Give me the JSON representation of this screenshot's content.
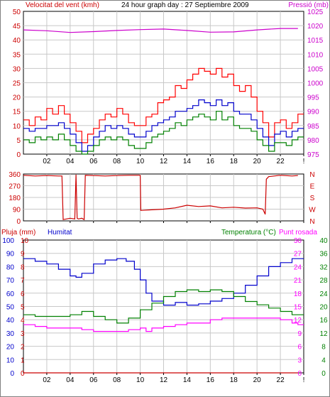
{
  "title": "24 hour graph day : 27 Septiembre 2009",
  "x_ticks": [
    "02",
    "04",
    "06",
    "08",
    "10",
    "12",
    "14",
    "16",
    "18",
    "20",
    "22",
    "!"
  ],
  "colors": {
    "wind": "#ff0000",
    "gust": "#0000cc",
    "rain": "#cc0000",
    "humidity": "#0000cc",
    "temperature": "#008000",
    "dewpoint": "#ff00ff",
    "pressure": "#cc00cc",
    "direction": "#cc0000",
    "grid": "#c8c8c8"
  },
  "chart_data": [
    {
      "type": "line",
      "name": "wind-pressure",
      "left_label": "Velocitat del vent (kmh)",
      "right_label": "Pressió (mb)",
      "left_ticks": [
        0,
        5,
        10,
        15,
        20,
        25,
        30,
        35,
        40,
        45,
        50
      ],
      "ylim_left": [
        0,
        50
      ],
      "right_ticks": [
        975,
        980,
        985,
        990,
        995,
        1000,
        1005,
        1010,
        1015,
        1020,
        1025
      ],
      "ylim_right": [
        975,
        1025
      ],
      "xlim": [
        0,
        24
      ],
      "series": [
        {
          "key": "wind_gust",
          "axis": "left",
          "color": "#ff0000",
          "x": [
            0,
            0.5,
            1,
            1.5,
            2,
            2.5,
            3,
            3.5,
            4,
            4.5,
            5,
            5.5,
            6,
            6.5,
            7,
            7.5,
            8,
            8.5,
            9,
            9.5,
            10,
            10.5,
            11,
            11.5,
            12,
            12.5,
            13,
            13.5,
            14,
            14.5,
            15,
            15.5,
            16,
            16.5,
            17,
            17.5,
            18,
            18.5,
            19,
            19.5,
            20,
            20.5,
            21,
            21.5,
            22,
            22.5,
            23,
            23.5
          ],
          "y": [
            12,
            10,
            13,
            12,
            16,
            14,
            17,
            14,
            11,
            8,
            4,
            7,
            9,
            12,
            14,
            13,
            16,
            14,
            11,
            10,
            10,
            13,
            14,
            18,
            19,
            20,
            24,
            23,
            26,
            28,
            30,
            29,
            28,
            30,
            27,
            28,
            24,
            22,
            24,
            20,
            15,
            11,
            6,
            11,
            12,
            9,
            11,
            14
          ]
        },
        {
          "key": "wind_avg",
          "axis": "left",
          "color": "#0000cc",
          "x": [
            0,
            0.5,
            1,
            1.5,
            2,
            2.5,
            3,
            3.5,
            4,
            4.5,
            5,
            5.5,
            6,
            6.5,
            7,
            7.5,
            8,
            8.5,
            9,
            9.5,
            10,
            10.5,
            11,
            11.5,
            12,
            12.5,
            13,
            13.5,
            14,
            14.5,
            15,
            15.5,
            16,
            16.5,
            17,
            17.5,
            18,
            18.5,
            19,
            19.5,
            20,
            20.5,
            21,
            21.5,
            22,
            22.5,
            23,
            23.5
          ],
          "y": [
            9,
            8,
            9,
            9,
            10,
            10,
            11,
            9,
            7,
            4,
            1,
            3,
            6,
            8,
            10,
            9,
            10,
            9,
            7,
            6,
            6,
            8,
            10,
            11,
            12,
            13,
            15,
            15,
            16,
            17,
            19,
            18,
            17,
            19,
            17,
            18,
            15,
            14,
            14,
            12,
            9,
            6,
            3,
            7,
            8,
            6,
            8,
            9
          ]
        },
        {
          "key": "wind_low",
          "axis": "left",
          "color": "#008000",
          "x": [
            0,
            0.5,
            1,
            1.5,
            2,
            2.5,
            3,
            3.5,
            4,
            4.5,
            5,
            5.5,
            6,
            6.5,
            7,
            7.5,
            8,
            8.5,
            9,
            9.5,
            10,
            10.5,
            11,
            11.5,
            12,
            12.5,
            13,
            13.5,
            14,
            14.5,
            15,
            15.5,
            16,
            16.5,
            17,
            17.5,
            18,
            18.5,
            19,
            19.5,
            20,
            20.5,
            21,
            21.5,
            22,
            22.5,
            23,
            23.5
          ],
          "y": [
            5,
            4,
            6,
            5,
            6,
            5,
            7,
            5,
            3,
            1,
            0,
            1,
            3,
            5,
            6,
            5,
            6,
            5,
            3,
            2,
            2,
            4,
            6,
            7,
            8,
            9,
            11,
            10,
            12,
            13,
            14,
            13,
            12,
            15,
            12,
            13,
            10,
            9,
            9,
            8,
            5,
            3,
            1,
            4,
            4,
            3,
            5,
            6
          ]
        },
        {
          "key": "pressure",
          "axis": "right",
          "color": "#cc00cc",
          "x": [
            0,
            2,
            4,
            6,
            8,
            10,
            12,
            14,
            16,
            18,
            20,
            22,
            23.5
          ],
          "y": [
            1018.5,
            1018.2,
            1017.6,
            1017.9,
            1018.3,
            1018.6,
            1018.8,
            1018.3,
            1017.7,
            1017.8,
            1018.5,
            1019.0,
            1019.0
          ]
        }
      ]
    },
    {
      "type": "line",
      "name": "wind-direction",
      "left_ticks": [
        0,
        90,
        180,
        270,
        360
      ],
      "ylim_left": [
        0,
        360
      ],
      "right_ticks": [
        "N",
        "E",
        "S",
        "W",
        "N"
      ],
      "xlim": [
        0,
        24
      ],
      "series": [
        {
          "key": "direction",
          "axis": "left",
          "color": "#cc0000",
          "x": [
            0,
            1,
            2,
            3,
            3.3,
            3.4,
            4,
            4.4,
            4.5,
            4.6,
            4.7,
            5,
            5.2,
            5.3,
            6,
            7,
            8,
            9,
            10,
            10.05,
            11,
            12,
            13,
            14,
            15,
            16,
            17,
            18,
            19,
            20,
            20.5,
            20.7,
            20.8,
            21,
            22,
            23,
            23.5
          ],
          "y": [
            350,
            345,
            348,
            345,
            345,
            10,
            20,
            15,
            355,
            20,
            15,
            20,
            10,
            350,
            348,
            345,
            348,
            350,
            350,
            80,
            85,
            90,
            100,
            120,
            110,
            115,
            100,
            105,
            98,
            100,
            90,
            50,
            320,
            340,
            350,
            345,
            348
          ]
        }
      ]
    },
    {
      "type": "line",
      "name": "rain-humidity-temperature",
      "left_labels": [
        "Pluja (mm)",
        "Humitat"
      ],
      "right_labels": [
        "Temperatura (°C)",
        "Punt rosada"
      ],
      "rain_ticks": [
        0,
        1,
        2,
        3,
        4,
        5,
        6,
        7,
        8,
        9,
        10
      ],
      "humidity_ticks": [
        0,
        10,
        20,
        30,
        40,
        50,
        60,
        70,
        80,
        90,
        100
      ],
      "temp_ticks_inner": [
        0,
        3,
        6,
        9,
        12,
        15,
        18,
        21,
        24,
        27,
        30
      ],
      "temp_ticks_right": [
        0,
        4,
        8,
        12,
        16,
        20,
        24,
        28,
        32,
        36,
        40
      ],
      "ylim_humidity": [
        0,
        100
      ],
      "ylim_temp": [
        0,
        40
      ],
      "xlim": [
        0,
        24
      ],
      "series": [
        {
          "key": "humidity",
          "axis": "humidity",
          "color": "#0000cc",
          "x": [
            0,
            1,
            2,
            3,
            4,
            4.5,
            5,
            6,
            7,
            8,
            8.8,
            9.5,
            10,
            10.5,
            11,
            12,
            13,
            14,
            15,
            16,
            17,
            18,
            19,
            20,
            21,
            22,
            23,
            23.5
          ],
          "y": [
            86,
            84,
            82,
            78,
            73,
            72,
            75,
            82,
            85,
            86,
            84,
            78,
            70,
            60,
            54,
            51,
            53,
            51,
            52,
            54,
            56,
            60,
            66,
            73,
            80,
            83,
            86,
            86
          ]
        },
        {
          "key": "temperature",
          "axis": "temp",
          "color": "#008000",
          "x": [
            0,
            1,
            2,
            3,
            4,
            5,
            6,
            7,
            8,
            9,
            10,
            11,
            12,
            13,
            14,
            15,
            16,
            17,
            18,
            19,
            20,
            21,
            22,
            23,
            23.5
          ],
          "y": [
            17.5,
            17,
            17,
            17,
            17.5,
            18.5,
            17,
            16,
            15,
            16.5,
            19,
            21,
            23,
            24.5,
            25,
            24.5,
            25,
            24.5,
            23,
            21.5,
            20.5,
            19.5,
            18.5,
            17.5,
            17.5
          ]
        },
        {
          "key": "dewpoint",
          "axis": "temp",
          "color": "#ff00ff",
          "x": [
            0,
            1,
            2,
            3,
            4,
            5,
            6,
            7,
            8,
            9,
            10,
            10.5,
            11,
            12,
            13,
            14,
            15,
            16,
            17,
            18,
            19,
            20,
            21,
            22,
            23,
            23.5
          ],
          "y": [
            14.5,
            14,
            13.5,
            13.5,
            13.5,
            13,
            12.5,
            12.5,
            12.5,
            13,
            13.5,
            12.5,
            13.5,
            14,
            14.5,
            15,
            15,
            16,
            16.5,
            16.5,
            16.5,
            16.5,
            16.5,
            16,
            15,
            14.5
          ]
        },
        {
          "key": "rain",
          "axis": "rain",
          "color": "#cc0000",
          "x": [
            0,
            23.5
          ],
          "y": [
            0,
            0
          ]
        }
      ]
    }
  ]
}
